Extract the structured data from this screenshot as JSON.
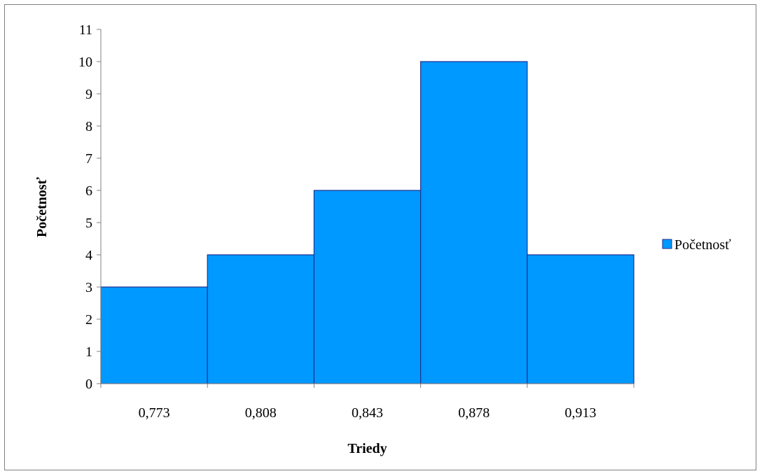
{
  "chart_data": {
    "type": "bar",
    "title": "",
    "xlabel": "Triedy",
    "ylabel": "Početnosť",
    "categories": [
      "0,773",
      "0,808",
      "0,843",
      "0,878",
      "0,913"
    ],
    "series": [
      {
        "name": "Početnosť",
        "values": [
          3,
          4,
          6,
          10,
          4
        ]
      }
    ],
    "ylim": [
      0,
      11
    ],
    "yticks": [
      0,
      1,
      2,
      3,
      4,
      5,
      6,
      7,
      8,
      9,
      10,
      11
    ],
    "grid": false,
    "legend": "right",
    "colors": {
      "bar_fill": "#0099FF",
      "bar_stroke": "#1F2F8F",
      "axis": "#808080"
    }
  }
}
